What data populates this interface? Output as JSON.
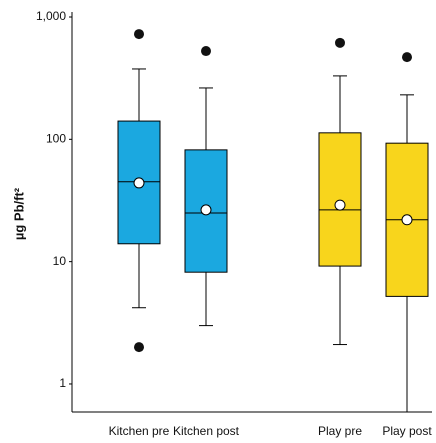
{
  "chart_data": {
    "type": "box",
    "y_label": "µg Pb/ft²",
    "log_scale": true,
    "categories": [
      "Kitchen pre",
      "Kitchen post",
      null,
      "Play pre",
      "Play post"
    ],
    "colors": [
      "#1ba8e0",
      "#1ba8e0",
      null,
      "#f8d51c",
      "#f8d51c"
    ],
    "min": [
      4.2,
      3.0,
      null,
      2.1,
      0.5
    ],
    "q1": [
      14,
      8.2,
      null,
      9.2,
      5.2
    ],
    "median": [
      45,
      25,
      null,
      26.5,
      22
    ],
    "q3": [
      141,
      82,
      null,
      113,
      93
    ],
    "max": [
      376,
      263,
      null,
      330,
      231
    ],
    "mean": [
      44,
      26.5,
      null,
      29,
      22
    ],
    "outliers": [
      [
        725,
        2.0
      ],
      [
        527
      ],
      null,
      [
        615
      ],
      [
        470
      ]
    ],
    "ylim": [
      0.59,
      1000
    ],
    "yticks": [
      1,
      10,
      100,
      {
        "value": 1000,
        "label": "1,000"
      }
    ]
  }
}
